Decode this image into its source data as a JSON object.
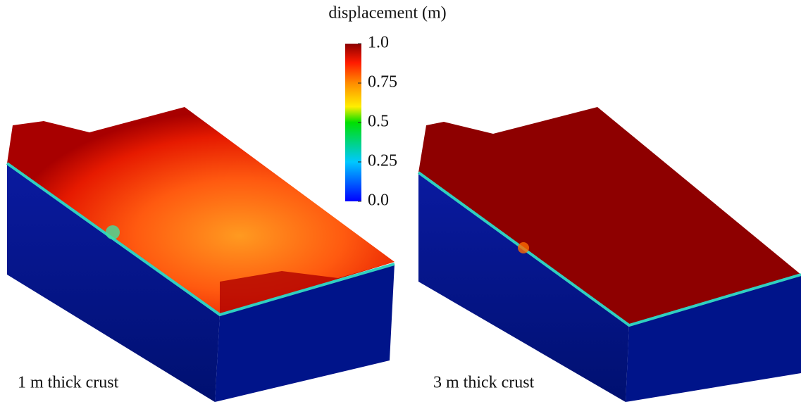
{
  "colorbar": {
    "title": "displacement (m)",
    "lim": [
      0,
      1
    ],
    "ticks": [
      {
        "value": 1,
        "label": "1.0"
      },
      0.75,
      0.5,
      0.25,
      {
        "value": 0,
        "label": "0.0"
      }
    ]
  },
  "panels": [
    {
      "label": "1 m thick crust"
    },
    {
      "label": "3 m thick crust"
    }
  ]
}
